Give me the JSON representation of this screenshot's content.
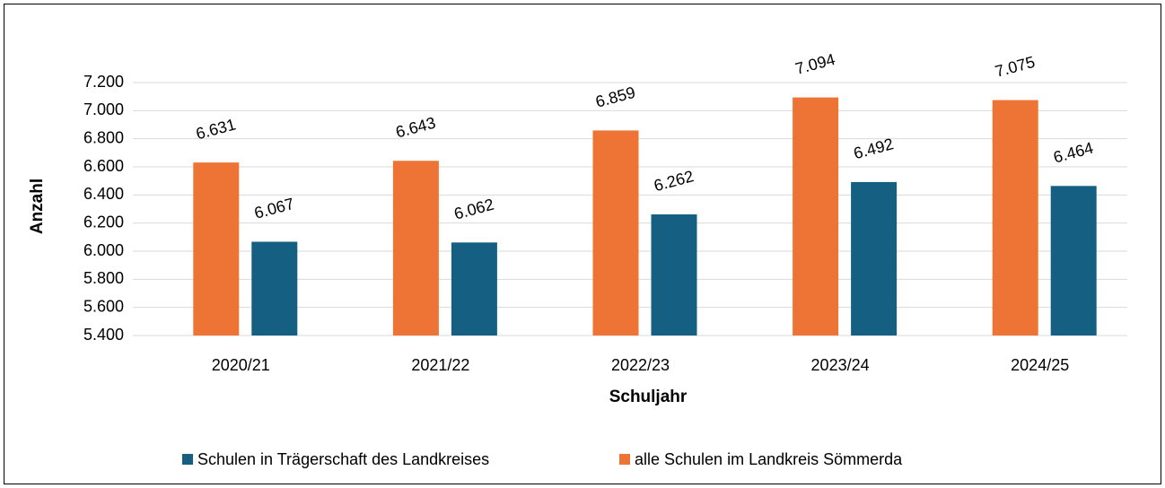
{
  "chart_data": {
    "type": "bar",
    "x_label": "Schuljahr",
    "y_label": "Anzahl",
    "categories": [
      "2020/21",
      "2021/22",
      "2022/23",
      "2023/24",
      "2024/25"
    ],
    "series": [
      {
        "name": "alle Schulen im Landkreis Sömmerda",
        "color": "#ed7434",
        "values": [
          6631,
          6643,
          6859,
          7094,
          7075
        ],
        "value_labels": [
          "6.631",
          "6.643",
          "6.859",
          "7.094",
          "7.075"
        ]
      },
      {
        "name": "Schulen in Trägerschaft des Landkreises",
        "color": "#156082",
        "values": [
          6067,
          6062,
          6262,
          6492,
          6464
        ],
        "value_labels": [
          "6.067",
          "6.062",
          "6.262",
          "6.492",
          "6.464"
        ]
      }
    ],
    "ylim": [
      5400,
      7200
    ],
    "yticks": [
      {
        "value": 5400,
        "label": "5.400"
      },
      {
        "value": 5600,
        "label": "5.600"
      },
      {
        "value": 5800,
        "label": "5.800"
      },
      {
        "value": 6000,
        "label": "6.000"
      },
      {
        "value": 6200,
        "label": "6.200"
      },
      {
        "value": 6400,
        "label": "6.400"
      },
      {
        "value": 6600,
        "label": "6.600"
      },
      {
        "value": 6800,
        "label": "6.800"
      },
      {
        "value": 7000,
        "label": "7.000"
      },
      {
        "value": 7200,
        "label": "7.200"
      }
    ],
    "grid": true,
    "legend": "bottom"
  }
}
